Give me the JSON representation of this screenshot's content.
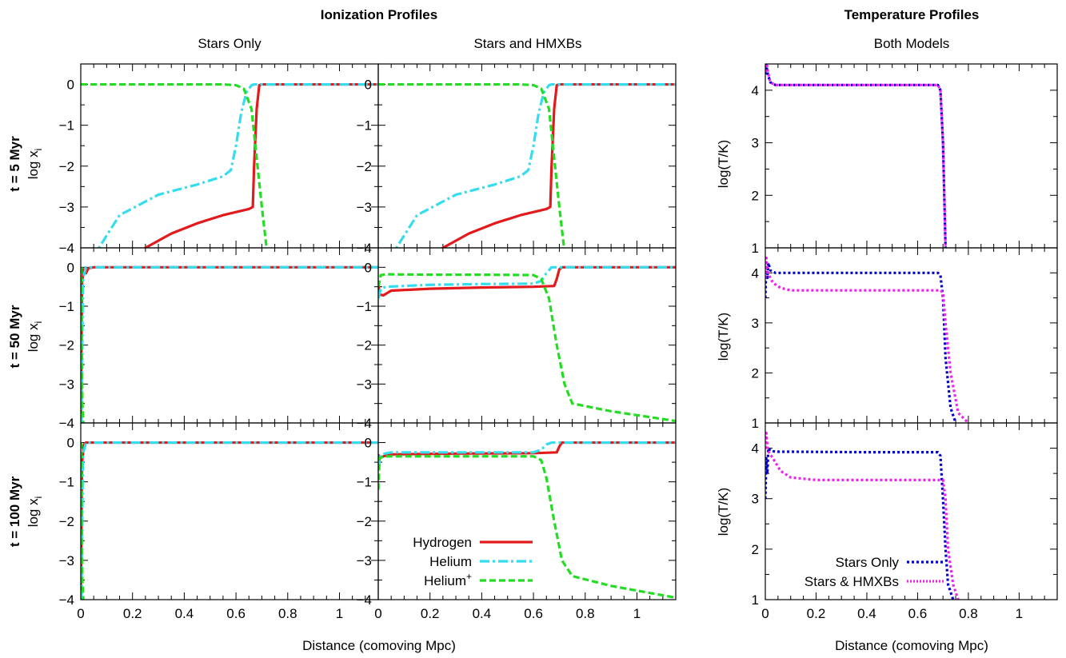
{
  "titles": {
    "ionization": "Ionization Profiles",
    "temperature": "Temperature Profiles",
    "col_stars": "Stars Only",
    "col_hmxb": "Stars and HMXBs",
    "col_both": "Both Models"
  },
  "xlabel": "Distance (comoving Mpc)",
  "ylabel_ion": "log x",
  "ylabel_ion_sub": "i",
  "ylabel_temp": "log(T/K)",
  "rows": [
    "t = 5 Myr",
    "t = 50 Myr",
    "t = 100 Myr"
  ],
  "legend_ion": {
    "hydrogen": "Hydrogen",
    "helium": "Helium",
    "helium_plus": "Helium",
    "helium_plus_sup": "+"
  },
  "legend_temp": {
    "stars_only": "Stars Only",
    "stars_hmxb": "Stars & HMXBs"
  },
  "colors": {
    "hydrogen": "#e31a1c",
    "helium": "#33ddee",
    "helium_plus": "#22dd22",
    "stars_only": "#0000cc",
    "stars_hmxb": "#ee22ee"
  },
  "chart_data": [
    {
      "type": "line",
      "panel": "ion",
      "row": 0,
      "col": 0,
      "xlim": [
        0,
        1.15
      ],
      "ylim": [
        -4,
        0.5
      ],
      "xticks": [
        0,
        0.2,
        0.4,
        0.6,
        0.8,
        1
      ],
      "yticks": [
        -4,
        -3,
        -2,
        -1,
        0
      ],
      "series": [
        {
          "name": "Hydrogen",
          "style": "solid",
          "color": "#e31a1c",
          "x": [
            0.1,
            0.25,
            0.35,
            0.45,
            0.55,
            0.65,
            0.665,
            0.67,
            0.68,
            0.69,
            0.7,
            1.15
          ],
          "y": [
            -4.6,
            -4.0,
            -3.65,
            -3.4,
            -3.2,
            -3.05,
            -3.0,
            -2.0,
            -0.6,
            -0.02,
            0,
            0
          ]
        },
        {
          "name": "Helium",
          "style": "dashdot",
          "color": "#33ddee",
          "x": [
            0.05,
            0.07,
            0.15,
            0.3,
            0.45,
            0.55,
            0.58,
            0.6,
            0.62,
            0.64,
            0.66,
            0.67,
            1.15
          ],
          "y": [
            -4.3,
            -4.0,
            -3.2,
            -2.7,
            -2.45,
            -2.25,
            -2.1,
            -1.5,
            -0.7,
            -0.2,
            -0.02,
            0,
            0
          ]
        },
        {
          "name": "Helium+",
          "style": "dashed",
          "color": "#22dd22",
          "x": [
            0,
            0.55,
            0.6,
            0.63,
            0.66,
            0.68,
            0.7,
            0.72
          ],
          "y": [
            0,
            0,
            -0.02,
            -0.1,
            -0.6,
            -1.8,
            -3.0,
            -4.1
          ]
        }
      ]
    },
    {
      "type": "line",
      "panel": "ion",
      "row": 0,
      "col": 1,
      "xlim": [
        0,
        1.15
      ],
      "ylim": [
        -4,
        0.5
      ],
      "xticks": [
        0,
        0.2,
        0.4,
        0.6,
        0.8,
        1
      ],
      "yticks": [
        -4,
        -3,
        -2,
        -1,
        0
      ],
      "series": [
        {
          "name": "Hydrogen",
          "style": "solid",
          "color": "#e31a1c",
          "x": [
            0.1,
            0.25,
            0.35,
            0.45,
            0.55,
            0.65,
            0.665,
            0.67,
            0.68,
            0.69,
            0.7,
            1.15
          ],
          "y": [
            -4.6,
            -4.0,
            -3.65,
            -3.4,
            -3.2,
            -3.05,
            -3.0,
            -2.0,
            -0.6,
            -0.02,
            0,
            0
          ]
        },
        {
          "name": "Helium",
          "style": "dashdot",
          "color": "#33ddee",
          "x": [
            0.05,
            0.07,
            0.15,
            0.3,
            0.45,
            0.55,
            0.58,
            0.6,
            0.62,
            0.64,
            0.66,
            0.67,
            1.15
          ],
          "y": [
            -4.3,
            -4.0,
            -3.2,
            -2.7,
            -2.45,
            -2.25,
            -2.1,
            -1.5,
            -0.7,
            -0.2,
            -0.02,
            0,
            0
          ]
        },
        {
          "name": "Helium+",
          "style": "dashed",
          "color": "#22dd22",
          "x": [
            0,
            0.55,
            0.6,
            0.63,
            0.66,
            0.68,
            0.7,
            0.72
          ],
          "y": [
            0,
            0,
            -0.02,
            -0.1,
            -0.6,
            -1.8,
            -3.0,
            -4.1
          ]
        }
      ]
    },
    {
      "type": "line",
      "panel": "ion",
      "row": 1,
      "col": 0,
      "xlim": [
        0,
        1.15
      ],
      "ylim": [
        -4,
        0.5
      ],
      "xticks": [
        0,
        0.2,
        0.4,
        0.6,
        0.8,
        1
      ],
      "yticks": [
        -4,
        -3,
        -2,
        -1,
        0
      ],
      "series": [
        {
          "name": "Hydrogen",
          "style": "solid",
          "color": "#e31a1c",
          "x": [
            0,
            0.005,
            0.01,
            0.02,
            0.03,
            0.05,
            1.15
          ],
          "y": [
            -4.0,
            -0.4,
            -0.05,
            -0.15,
            -0.02,
            0,
            0
          ]
        },
        {
          "name": "Helium",
          "style": "dashdot",
          "color": "#33ddee",
          "x": [
            0.003,
            0.008,
            0.02,
            1.15
          ],
          "y": [
            -4.0,
            -0.3,
            0,
            0
          ]
        },
        {
          "name": "Helium+",
          "style": "dashed",
          "color": "#22dd22",
          "x": [
            0.001,
            0.004,
            0.006,
            0.01
          ],
          "y": [
            0,
            -2.0,
            -3.5,
            -4.0
          ]
        }
      ]
    },
    {
      "type": "line",
      "panel": "ion",
      "row": 1,
      "col": 1,
      "xlim": [
        0,
        1.15
      ],
      "ylim": [
        -4,
        0.5
      ],
      "xticks": [
        0,
        0.2,
        0.4,
        0.6,
        0.8,
        1
      ],
      "yticks": [
        -4,
        -3,
        -2,
        -1,
        0
      ],
      "series": [
        {
          "name": "Hydrogen",
          "style": "solid",
          "color": "#e31a1c",
          "x": [
            0,
            0.005,
            0.02,
            0.05,
            0.2,
            0.4,
            0.6,
            0.68,
            0.69,
            0.7,
            0.71,
            1.15
          ],
          "y": [
            -0.4,
            -0.7,
            -0.72,
            -0.6,
            -0.55,
            -0.52,
            -0.5,
            -0.48,
            -0.3,
            -0.05,
            0,
            0
          ]
        },
        {
          "name": "Helium",
          "style": "dashdot",
          "color": "#33ddee",
          "x": [
            0,
            0.01,
            0.03,
            0.2,
            0.4,
            0.6,
            0.63,
            0.65,
            0.67,
            1.15
          ],
          "y": [
            -0.8,
            -0.55,
            -0.5,
            -0.45,
            -0.43,
            -0.42,
            -0.35,
            -0.15,
            0,
            0
          ]
        },
        {
          "name": "Helium+",
          "style": "dashed",
          "color": "#22dd22",
          "x": [
            0,
            0.01,
            0.03,
            0.2,
            0.4,
            0.6,
            0.63,
            0.66,
            0.69,
            0.72,
            0.75,
            0.9,
            1.15
          ],
          "y": [
            -0.5,
            -0.2,
            -0.18,
            -0.19,
            -0.19,
            -0.2,
            -0.3,
            -0.8,
            -2.0,
            -3.0,
            -3.5,
            -3.7,
            -3.95
          ]
        }
      ]
    },
    {
      "type": "line",
      "panel": "ion",
      "row": 2,
      "col": 0,
      "xlim": [
        0,
        1.15
      ],
      "ylim": [
        -4,
        0.5
      ],
      "xticks": [
        0,
        0.2,
        0.4,
        0.6,
        0.8,
        1
      ],
      "yticks": [
        -4,
        -3,
        -2,
        -1,
        0
      ],
      "series": [
        {
          "name": "Hydrogen",
          "style": "solid",
          "color": "#e31a1c",
          "x": [
            0,
            0.005,
            0.012,
            0.02,
            1.15
          ],
          "y": [
            -4.0,
            -0.5,
            -0.05,
            0,
            0
          ]
        },
        {
          "name": "Helium",
          "style": "dashdot",
          "color": "#33ddee",
          "x": [
            0.003,
            0.008,
            0.02,
            1.15
          ],
          "y": [
            -4.0,
            -0.3,
            0,
            0
          ]
        },
        {
          "name": "Helium+",
          "style": "dashed",
          "color": "#22dd22",
          "x": [
            0.001,
            0.004,
            0.006,
            0.01
          ],
          "y": [
            0,
            -2.0,
            -3.5,
            -4.0
          ]
        }
      ]
    },
    {
      "type": "line",
      "panel": "ion",
      "row": 2,
      "col": 1,
      "xlim": [
        0,
        1.15
      ],
      "ylim": [
        -4,
        0.5
      ],
      "xticks": [
        0,
        0.2,
        0.4,
        0.6,
        0.8,
        1
      ],
      "yticks": [
        -4,
        -3,
        -2,
        -1,
        0
      ],
      "series": [
        {
          "name": "Hydrogen",
          "style": "solid",
          "color": "#e31a1c",
          "x": [
            0,
            0.005,
            0.02,
            0.05,
            0.3,
            0.6,
            0.69,
            0.7,
            0.71,
            1.15
          ],
          "y": [
            -0.3,
            -0.4,
            -0.35,
            -0.3,
            -0.28,
            -0.27,
            -0.25,
            -0.1,
            0,
            0
          ]
        },
        {
          "name": "Helium",
          "style": "dashdot",
          "color": "#33ddee",
          "x": [
            0,
            0.01,
            0.05,
            0.4,
            0.6,
            0.63,
            0.65,
            0.67,
            1.15
          ],
          "y": [
            -0.7,
            -0.3,
            -0.25,
            -0.25,
            -0.25,
            -0.18,
            -0.05,
            0,
            0
          ]
        },
        {
          "name": "Helium+",
          "style": "dashed",
          "color": "#22dd22",
          "x": [
            0,
            0.005,
            0.02,
            0.1,
            0.4,
            0.6,
            0.63,
            0.65,
            0.68,
            0.71,
            0.75,
            0.9,
            1.15
          ],
          "y": [
            -1.2,
            -0.4,
            -0.35,
            -0.35,
            -0.35,
            -0.35,
            -0.45,
            -0.9,
            -2.0,
            -3.0,
            -3.4,
            -3.65,
            -3.95
          ]
        }
      ]
    },
    {
      "type": "line",
      "panel": "temp",
      "row": 0,
      "col": 2,
      "xlim": [
        0,
        1.15
      ],
      "ylim": [
        1,
        4.5
      ],
      "xticks": [
        0,
        0.2,
        0.4,
        0.6,
        0.8,
        1
      ],
      "yticks": [
        1,
        2,
        3,
        4
      ],
      "series": [
        {
          "name": "Stars Only",
          "style": "dotted",
          "color": "#0000cc",
          "x": [
            0,
            0.003,
            0.01,
            0.02,
            0.04,
            0.1,
            0.4,
            0.6,
            0.68,
            0.69,
            0.7,
            0.705,
            0.71
          ],
          "y": [
            4.3,
            4.5,
            4.3,
            4.15,
            4.1,
            4.1,
            4.1,
            4.1,
            4.1,
            4.0,
            3.0,
            2.0,
            1.0
          ]
        },
        {
          "name": "Stars & HMXBs",
          "style": "dotted",
          "color": "#ee22ee",
          "x": [
            0,
            0.003,
            0.01,
            0.02,
            0.04,
            0.1,
            0.4,
            0.6,
            0.68,
            0.69,
            0.7,
            0.705,
            0.71
          ],
          "y": [
            4.35,
            4.6,
            4.35,
            4.15,
            4.1,
            4.1,
            4.1,
            4.1,
            4.1,
            4.0,
            3.0,
            2.0,
            1.0
          ]
        }
      ]
    },
    {
      "type": "line",
      "panel": "temp",
      "row": 1,
      "col": 2,
      "xlim": [
        0,
        1.15
      ],
      "ylim": [
        1,
        4.5
      ],
      "xticks": [
        0,
        0.2,
        0.4,
        0.6,
        0.8,
        1
      ],
      "yticks": [
        1,
        2,
        3,
        4
      ],
      "series": [
        {
          "name": "Stars Only",
          "style": "dotted",
          "color": "#0000cc",
          "x": [
            0,
            0.004,
            0.008,
            0.012,
            0.02,
            0.04,
            0.1,
            0.4,
            0.68,
            0.69,
            0.7,
            0.71,
            0.73,
            0.75
          ],
          "y": [
            3.5,
            4.2,
            3.9,
            4.2,
            4.05,
            4.0,
            4.0,
            4.0,
            4.0,
            3.95,
            3.5,
            2.3,
            1.3,
            1.0
          ]
        },
        {
          "name": "Stars & HMXBs",
          "style": "dotted",
          "color": "#ee22ee",
          "x": [
            0,
            0.004,
            0.01,
            0.03,
            0.06,
            0.1,
            0.3,
            0.6,
            0.69,
            0.7,
            0.71,
            0.73,
            0.76,
            0.8
          ],
          "y": [
            3.9,
            4.3,
            4.0,
            3.8,
            3.7,
            3.65,
            3.65,
            3.65,
            3.65,
            3.6,
            3.0,
            2.0,
            1.2,
            1.0
          ]
        }
      ]
    },
    {
      "type": "line",
      "panel": "temp",
      "row": 2,
      "col": 2,
      "xlim": [
        0,
        1.15
      ],
      "ylim": [
        1,
        4.5
      ],
      "xticks": [
        0,
        0.2,
        0.4,
        0.6,
        0.8,
        1
      ],
      "yticks": [
        1,
        2,
        3,
        4
      ],
      "series": [
        {
          "name": "Stars Only",
          "style": "dotted",
          "color": "#0000cc",
          "x": [
            0,
            0.004,
            0.008,
            0.012,
            0.02,
            0.04,
            0.1,
            0.4,
            0.68,
            0.69,
            0.7,
            0.71,
            0.72,
            0.74
          ],
          "y": [
            3.0,
            3.8,
            3.5,
            4.0,
            3.95,
            3.93,
            3.93,
            3.92,
            3.92,
            3.85,
            3.0,
            2.0,
            1.3,
            1.0
          ]
        },
        {
          "name": "Stars & HMXBs",
          "style": "dotted",
          "color": "#ee22ee",
          "x": [
            0,
            0.004,
            0.01,
            0.03,
            0.06,
            0.1,
            0.2,
            0.4,
            0.6,
            0.7,
            0.71,
            0.72,
            0.74,
            0.76
          ],
          "y": [
            4.0,
            4.3,
            3.95,
            3.8,
            3.55,
            3.42,
            3.37,
            3.37,
            3.37,
            3.37,
            3.0,
            2.0,
            1.3,
            1.0
          ]
        }
      ]
    }
  ]
}
